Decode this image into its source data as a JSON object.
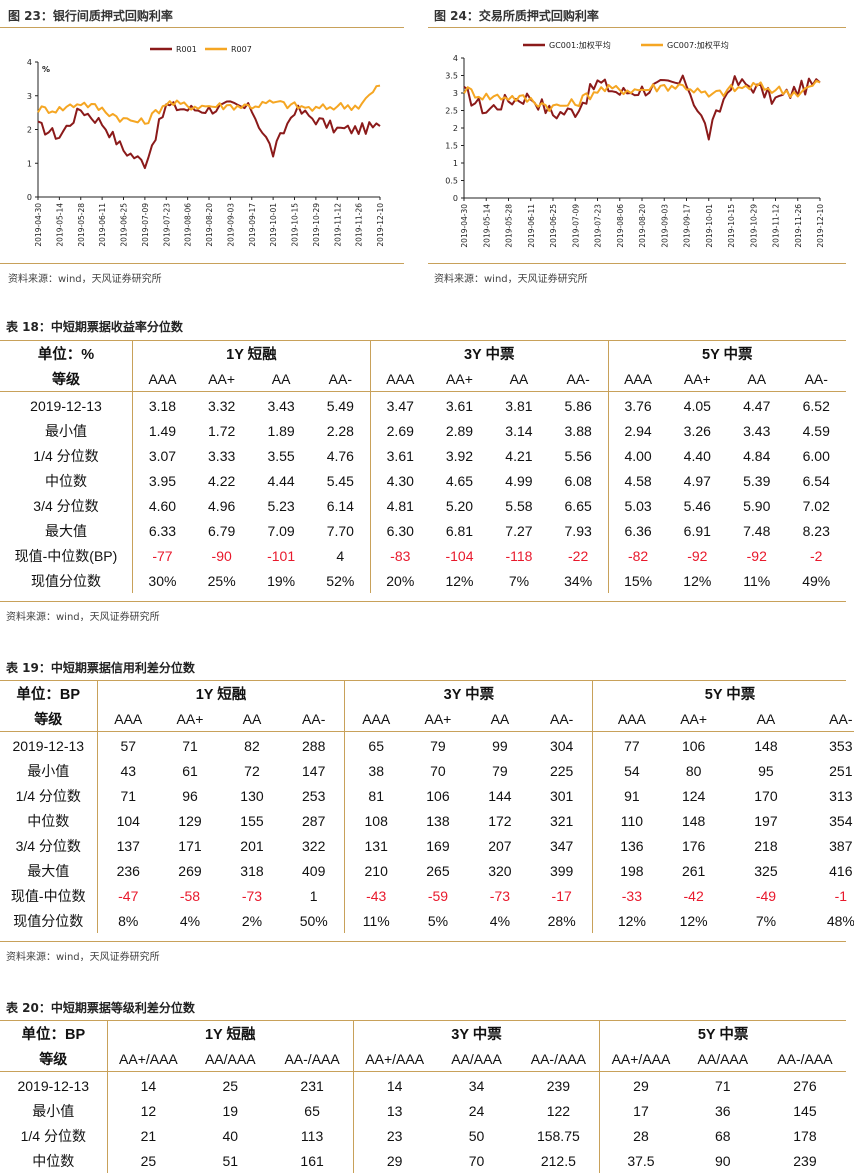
{
  "fig23": {
    "title": "图 23：银行间质押式回购利率",
    "source": "资料来源：wind，天风证券研究所",
    "chart_data": {
      "type": "line",
      "ylabel": "%",
      "ylim": [
        0,
        4
      ],
      "yticks": [
        "0",
        "1",
        "2",
        "3",
        "4"
      ],
      "x": [
        "2019-04-30",
        "2019-05-14",
        "2019-05-28",
        "2019-06-11",
        "2019-06-25",
        "2019-07-09",
        "2019-07-23",
        "2019-08-06",
        "2019-08-20",
        "2019-09-03",
        "2019-09-17",
        "2019-10-01",
        "2019-10-15",
        "2019-10-29",
        "2019-11-12",
        "2019-11-26",
        "2019-12-10"
      ],
      "series": [
        {
          "name": "R001",
          "color": "#8b1a1a",
          "values": [
            2.1,
            1.8,
            2.6,
            2.2,
            1.4,
            1.0,
            2.7,
            2.6,
            2.6,
            2.7,
            2.6,
            1.3,
            2.6,
            2.3,
            2.0,
            2.0,
            2.1
          ]
        },
        {
          "name": "R007",
          "color": "#f5a623",
          "values": [
            2.6,
            2.6,
            2.8,
            2.6,
            2.3,
            2.2,
            2.8,
            2.7,
            2.7,
            2.7,
            2.7,
            2.8,
            2.7,
            2.6,
            2.7,
            2.7,
            3.3
          ]
        }
      ]
    }
  },
  "fig24": {
    "title": "图 24：交易所质押式回购利率",
    "source": "资料来源：wind，天风证券研究所",
    "chart_data": {
      "type": "line",
      "ylim": [
        0,
        4
      ],
      "yticks": [
        "0",
        "0.5",
        "1",
        "1.5",
        "2",
        "2.5",
        "3",
        "3.5",
        "4"
      ],
      "x": [
        "2019-04-30",
        "2019-05-14",
        "2019-05-28",
        "2019-06-11",
        "2019-06-25",
        "2019-07-09",
        "2019-07-23",
        "2019-08-06",
        "2019-08-20",
        "2019-09-03",
        "2019-09-17",
        "2019-10-01",
        "2019-10-15",
        "2019-10-29",
        "2019-11-12",
        "2019-11-26",
        "2019-12-10"
      ],
      "series": [
        {
          "name": "GC001:加权平均",
          "color": "#8b1a1a",
          "values": [
            3.0,
            2.5,
            2.8,
            2.9,
            2.4,
            2.5,
            3.3,
            3.0,
            3.1,
            3.2,
            3.3,
            1.8,
            3.3,
            3.2,
            2.8,
            3.1,
            3.3
          ]
        },
        {
          "name": "GC007:加权平均",
          "color": "#f5a623",
          "values": [
            3.1,
            2.9,
            2.9,
            2.8,
            2.6,
            2.7,
            3.1,
            3.1,
            3.1,
            3.2,
            3.2,
            2.9,
            3.1,
            3.2,
            3.1,
            3.0,
            3.3
          ]
        }
      ]
    }
  },
  "table18": {
    "title": "表 18：中短期票据收益率分位数",
    "source": "资料来源：wind，天风证券研究所",
    "unit": "单位：%",
    "grade_label": "等级",
    "groups": [
      "1Y 短融",
      "3Y 中票",
      "5Y 中票"
    ],
    "grades": [
      "AAA",
      "AA+",
      "AA",
      "AA-",
      "AAA",
      "AA+",
      "AA",
      "AA-",
      "AAA",
      "AA+",
      "AA",
      "AA-"
    ],
    "rows": [
      {
        "label": "2019-12-13",
        "cells": [
          "3.18",
          "3.32",
          "3.43",
          "5.49",
          "3.47",
          "3.61",
          "3.81",
          "5.86",
          "3.76",
          "4.05",
          "4.47",
          "6.52"
        ]
      },
      {
        "label": "最小值",
        "cells": [
          "1.49",
          "1.72",
          "1.89",
          "2.28",
          "2.69",
          "2.89",
          "3.14",
          "3.88",
          "2.94",
          "3.26",
          "3.43",
          "4.59"
        ]
      },
      {
        "label": "1/4 分位数",
        "cells": [
          "3.07",
          "3.33",
          "3.55",
          "4.76",
          "3.61",
          "3.92",
          "4.21",
          "5.56",
          "4.00",
          "4.40",
          "4.84",
          "6.00"
        ]
      },
      {
        "label": "中位数",
        "cells": [
          "3.95",
          "4.22",
          "4.44",
          "5.45",
          "4.30",
          "4.65",
          "4.99",
          "6.08",
          "4.58",
          "4.97",
          "5.39",
          "6.54"
        ]
      },
      {
        "label": "3/4 分位数",
        "cells": [
          "4.60",
          "4.96",
          "5.23",
          "6.14",
          "4.81",
          "5.20",
          "5.58",
          "6.65",
          "5.03",
          "5.46",
          "5.90",
          "7.02"
        ]
      },
      {
        "label": "最大值",
        "cells": [
          "6.33",
          "6.79",
          "7.09",
          "7.70",
          "6.30",
          "6.81",
          "7.27",
          "7.93",
          "6.36",
          "6.91",
          "7.48",
          "8.23"
        ]
      },
      {
        "label": "现值-中位数(BP)",
        "cells": [
          "-77",
          "-90",
          "-101",
          "4",
          "-83",
          "-104",
          "-118",
          "-22",
          "-82",
          "-92",
          "-92",
          "-2"
        ]
      },
      {
        "label": "现值分位数",
        "cells": [
          "30%",
          "25%",
          "19%",
          "52%",
          "20%",
          "12%",
          "7%",
          "34%",
          "15%",
          "12%",
          "11%",
          "49%"
        ]
      }
    ]
  },
  "table19": {
    "title": "表 19：中短期票据信用利差分位数",
    "source": "资料来源：wind，天风证券研究所",
    "unit": "单位：BP",
    "grade_label": "等级",
    "groups": [
      "1Y 短融",
      "3Y 中票",
      "5Y 中票"
    ],
    "grades": [
      "AAA",
      "AA+",
      "AA",
      "AA-",
      "AAA",
      "AA+",
      "AA",
      "AA-",
      "AAA",
      "AA+",
      "AA",
      "AA-"
    ],
    "rows": [
      {
        "label": "2019-12-13",
        "cells": [
          "57",
          "71",
          "82",
          "288",
          "65",
          "79",
          "99",
          "304",
          "77",
          "106",
          "148",
          "353"
        ]
      },
      {
        "label": "最小值",
        "cells": [
          "43",
          "61",
          "72",
          "147",
          "38",
          "70",
          "79",
          "225",
          "54",
          "80",
          "95",
          "251"
        ]
      },
      {
        "label": "1/4 分位数",
        "cells": [
          "71",
          "96",
          "130",
          "253",
          "81",
          "106",
          "144",
          "301",
          "91",
          "124",
          "170",
          "313"
        ]
      },
      {
        "label": "中位数",
        "cells": [
          "104",
          "129",
          "155",
          "287",
          "108",
          "138",
          "172",
          "321",
          "110",
          "148",
          "197",
          "354"
        ]
      },
      {
        "label": "3/4 分位数",
        "cells": [
          "137",
          "171",
          "201",
          "322",
          "131",
          "169",
          "207",
          "347",
          "136",
          "176",
          "218",
          "387"
        ]
      },
      {
        "label": "最大值",
        "cells": [
          "236",
          "269",
          "318",
          "409",
          "210",
          "265",
          "320",
          "399",
          "198",
          "261",
          "325",
          "416"
        ]
      },
      {
        "label": "现值-中位数",
        "cells": [
          "-47",
          "-58",
          "-73",
          "1",
          "-43",
          "-59",
          "-73",
          "-17",
          "-33",
          "-42",
          "-49",
          "-1"
        ]
      },
      {
        "label": "现值分位数",
        "cells": [
          "8%",
          "4%",
          "2%",
          "50%",
          "11%",
          "5%",
          "4%",
          "28%",
          "12%",
          "12%",
          "7%",
          "48%"
        ]
      }
    ]
  },
  "table20": {
    "title": "表 20：中短期票据等级利差分位数",
    "unit": "单位：BP",
    "grade_label": "等级",
    "groups": [
      "1Y 短融",
      "3Y 中票",
      "5Y 中票"
    ],
    "grades": [
      "AA+/AAA",
      "AA/AAA",
      "AA-/AAA",
      "AA+/AAA",
      "AA/AAA",
      "AA-/AAA",
      "AA+/AAA",
      "AA/AAA",
      "AA-/AAA"
    ],
    "rows": [
      {
        "label": "2019-12-13",
        "cells": [
          "14",
          "25",
          "231",
          "14",
          "34",
          "239",
          "29",
          "71",
          "276"
        ]
      },
      {
        "label": "最小值",
        "cells": [
          "12",
          "19",
          "65",
          "13",
          "24",
          "122",
          "17",
          "36",
          "145"
        ]
      },
      {
        "label": "1/4 分位数",
        "cells": [
          "21",
          "40",
          "113",
          "23",
          "50",
          "158.75",
          "28",
          "68",
          "178"
        ]
      },
      {
        "label": "中位数",
        "cells": [
          "25",
          "51",
          "161",
          "29",
          "70",
          "212.5",
          "37.5",
          "90",
          "239"
        ]
      }
    ]
  }
}
